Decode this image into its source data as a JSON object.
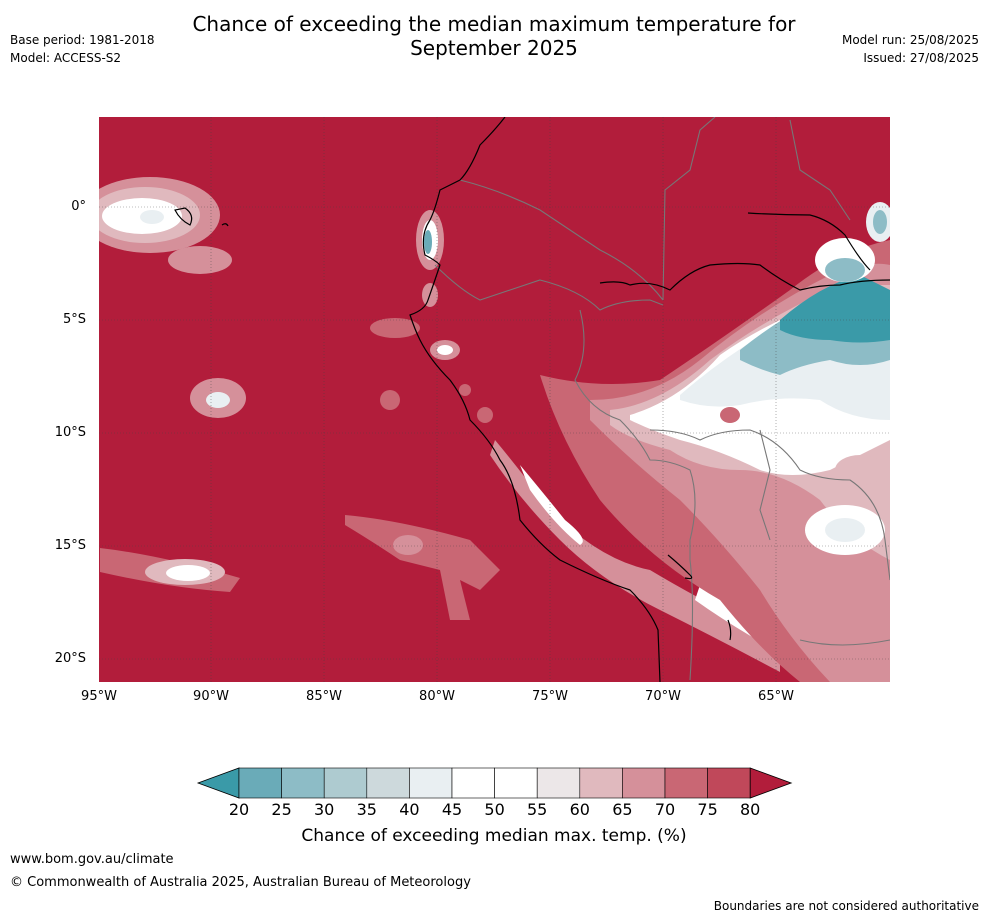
{
  "title_line1": "Chance of exceeding the median maximum temperature for",
  "title_line2": "September 2025",
  "meta_left": {
    "base_period": "Base period: 1981-2018",
    "model": "Model: ACCESS-S2"
  },
  "meta_right": {
    "model_run": "Model run: 25/08/2025",
    "issued": "Issued: 27/08/2025"
  },
  "axes": {
    "lat_labels": [
      "0°",
      "5°S",
      "10°S",
      "15°S",
      "20°S"
    ],
    "lon_labels": [
      "95°W",
      "90°W",
      "85°W",
      "80°W",
      "75°W",
      "70°W",
      "65°W"
    ]
  },
  "colorbar": {
    "ticks": [
      "20",
      "25",
      "30",
      "35",
      "40",
      "45",
      "50",
      "55",
      "60",
      "65",
      "70",
      "75",
      "80"
    ],
    "colors": [
      "#3a9aa8",
      "#6aabb8",
      "#8dbcc6",
      "#aecbd0",
      "#cdd9dc",
      "#e9eff2",
      "#ffffff",
      "#ffffff",
      "#ece7e8",
      "#e0b9be",
      "#d5909a",
      "#c96774",
      "#c0485a",
      "#b21d3b"
    ],
    "label": "Chance of exceeding median max. temp. (%)"
  },
  "footer": {
    "url": "www.bom.gov.au/climate",
    "copyright": "© Commonwealth of Australia 2025, Australian Bureau of Meteorology",
    "note": "Boundaries are not considered authoritative"
  },
  "colors": {
    "background_field": "#b21d3b"
  }
}
